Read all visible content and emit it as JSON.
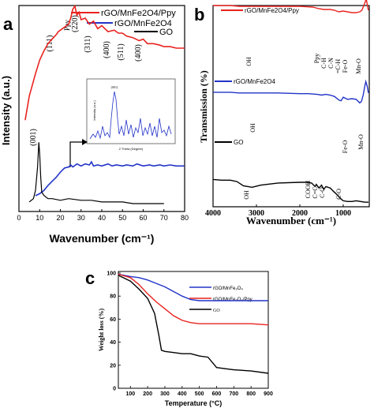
{
  "chart_data": [
    {
      "panel": "a",
      "type": "line",
      "xlabel": "Wavenumber (cm⁻¹)",
      "ylabel": "Intensity (a.u.)",
      "xlim": [
        0,
        80
      ],
      "xticks": [
        "0",
        "10",
        "20",
        "30",
        "40",
        "50",
        "60",
        "70",
        "80"
      ],
      "legend_position": "top-right",
      "series": [
        {
          "name": "rGO/MnFe2O4/Ppy",
          "color": "#e8231f",
          "x": [
            3,
            5,
            8,
            10,
            12,
            14,
            16,
            18,
            19,
            20,
            22,
            24,
            25,
            26,
            27,
            28,
            29,
            30,
            32,
            34,
            36,
            38,
            40,
            43,
            46,
            48,
            50,
            52,
            55,
            58,
            60,
            62,
            65,
            68,
            70,
            73,
            76,
            80
          ],
          "y": [
            0.12,
            0.28,
            0.43,
            0.52,
            0.58,
            0.63,
            0.66,
            0.69,
            0.71,
            0.72,
            0.74,
            0.76,
            0.8,
            0.86,
            0.88,
            0.82,
            0.84,
            0.79,
            0.8,
            0.76,
            0.78,
            0.73,
            0.75,
            0.71,
            0.72,
            0.7,
            0.7,
            0.68,
            0.67,
            0.65,
            0.66,
            0.63,
            0.63,
            0.62,
            0.61,
            0.61,
            0.6,
            0.6
          ]
        },
        {
          "name": "rGO/MnFe2O4",
          "color": "#2233c8",
          "x": [
            8,
            10,
            12,
            14,
            16,
            18,
            20,
            22,
            24,
            25,
            26,
            28,
            30,
            32,
            34,
            35,
            36,
            38,
            40,
            43,
            45,
            47,
            50,
            52,
            55,
            57,
            60,
            63,
            65,
            68,
            70,
            73,
            76,
            80
          ],
          "y": [
            0.0,
            0.02,
            0.05,
            0.1,
            0.14,
            0.18,
            0.23,
            0.27,
            0.28,
            0.3,
            0.28,
            0.31,
            0.29,
            0.31,
            0.3,
            0.33,
            0.29,
            0.3,
            0.29,
            0.31,
            0.29,
            0.3,
            0.29,
            0.3,
            0.29,
            0.31,
            0.29,
            0.3,
            0.29,
            0.3,
            0.29,
            0.3,
            0.29,
            0.29
          ]
        },
        {
          "name": "GO",
          "color": "#000000",
          "x": [
            5,
            7,
            8,
            9,
            9.6,
            10,
            10.5,
            11,
            12,
            14,
            16,
            20,
            24,
            30,
            35,
            40,
            45,
            50,
            55,
            60,
            65,
            70
          ],
          "y": [
            0.01,
            0.03,
            0.08,
            0.22,
            0.37,
            0.3,
            0.16,
            0.07,
            0.05,
            0.03,
            0.03,
            0.02,
            0.03,
            0.02,
            0.02,
            0.01,
            0.01,
            0.01,
            0.0,
            0.0,
            0.0,
            0.0
          ]
        }
      ],
      "peak_labels": [
        "(111)",
        "Ppy",
        "(220)",
        "(311)",
        "(400)",
        "(511)",
        "(400)",
        "(001)"
      ],
      "inset": {
        "xlabel": "2 Theta (Degree)",
        "ylabel": "Intensity (a.u.)",
        "peak_label": "(001)"
      }
    },
    {
      "panel": "b",
      "type": "line",
      "xlabel": "Wavenumber (cm⁻¹)",
      "ylabel": "Transmission (%)",
      "xlim": [
        4000,
        400
      ],
      "xticks": [
        "4000",
        "3000",
        "2000",
        "1000"
      ],
      "series": [
        {
          "name": "rGO/MnFe2O4/Ppy",
          "color": "#e8231f",
          "x": [
            4000,
            3600,
            3400,
            3000,
            2500,
            2000,
            1700,
            1560,
            1450,
            1300,
            1200,
            1100,
            1000,
            900,
            800,
            700,
            620,
            570,
            540,
            510,
            490,
            470,
            450,
            420
          ],
          "y": [
            0.88,
            0.88,
            0.87,
            0.87,
            0.87,
            0.87,
            0.86,
            0.84,
            0.83,
            0.83,
            0.82,
            0.8,
            0.81,
            0.8,
            0.79,
            0.79,
            0.8,
            0.82,
            0.86,
            0.9,
            0.93,
            0.97,
            0.9,
            0.82
          ]
        },
        {
          "name": "rGO/MnFe2O4",
          "color": "#2233c8",
          "x": [
            4000,
            3600,
            3400,
            3000,
            2500,
            2000,
            1800,
            1600,
            1500,
            1400,
            1300,
            1200,
            1100,
            1050,
            1000,
            900,
            800,
            700,
            620,
            580,
            540,
            510,
            480,
            450,
            420
          ],
          "y": [
            0.59,
            0.59,
            0.58,
            0.58,
            0.58,
            0.57,
            0.57,
            0.56,
            0.55,
            0.56,
            0.55,
            0.53,
            0.48,
            0.47,
            0.52,
            0.49,
            0.5,
            0.49,
            0.44,
            0.46,
            0.55,
            0.65,
            0.74,
            0.68,
            0.58
          ]
        },
        {
          "name": "GO",
          "color": "#000000",
          "x": [
            4000,
            3800,
            3600,
            3450,
            3300,
            3100,
            2900,
            2500,
            2000,
            1850,
            1730,
            1650,
            1620,
            1560,
            1500,
            1450,
            1400,
            1300,
            1220,
            1150,
            1060,
            1000,
            900,
            800,
            700,
            600,
            500,
            420
          ],
          "y": [
            0.34,
            0.33,
            0.33,
            0.31,
            0.25,
            0.23,
            0.26,
            0.29,
            0.3,
            0.3,
            0.29,
            0.24,
            0.27,
            0.22,
            0.26,
            0.2,
            0.24,
            0.22,
            0.17,
            0.13,
            0.07,
            0.04,
            0.03,
            0.03,
            0.04,
            0.03,
            0.02,
            0.02
          ]
        }
      ],
      "annotations": [
        "OH",
        "Ppy",
        "C-H",
        "C-N",
        "=C-H",
        "Fe-O",
        "Mn-O",
        "OH",
        "Fe-O",
        "Mn-O",
        "OH",
        "COOH",
        "C=C",
        "C-O",
        "C-O"
      ]
    },
    {
      "panel": "c",
      "type": "line",
      "xlabel": "Temperature (°C)",
      "ylabel": "Weight loss (%)",
      "xlim": [
        30,
        900
      ],
      "ylim": [
        0,
        100
      ],
      "xticks": [
        "100",
        "200",
        "300",
        "400",
        "500",
        "600",
        "700",
        "800",
        "900"
      ],
      "yticks": [
        "0",
        "20",
        "40",
        "60",
        "80",
        "100"
      ],
      "legend_position": "top-right",
      "series": [
        {
          "name": "rGO/MnFe₂O₄",
          "color": "#2233c8",
          "x": [
            30,
            100,
            150,
            200,
            250,
            300,
            350,
            400,
            450,
            500,
            600,
            700,
            800,
            900
          ],
          "y": [
            99,
            97,
            96,
            94,
            91,
            88,
            84,
            80,
            77,
            76,
            76,
            76,
            76,
            76
          ]
        },
        {
          "name": "rGO/MnFe₂O₄/Ppy",
          "color": "#e8231f",
          "x": [
            30,
            100,
            150,
            200,
            250,
            300,
            350,
            400,
            450,
            500,
            600,
            700,
            800,
            900
          ],
          "y": [
            99,
            96,
            90,
            82,
            75,
            69,
            63,
            59,
            57,
            56,
            56,
            56,
            56,
            55
          ]
        },
        {
          "name": "GO",
          "color": "#000000",
          "x": [
            30,
            100,
            150,
            200,
            240,
            265,
            280,
            300,
            350,
            400,
            450,
            500,
            550,
            600,
            650,
            700,
            800,
            900
          ],
          "y": [
            98,
            93,
            86,
            78,
            65,
            46,
            33,
            32,
            31,
            30,
            30,
            28,
            27,
            18,
            17,
            16,
            15,
            13
          ]
        }
      ]
    }
  ],
  "panels": {
    "a": {
      "label": "a"
    },
    "b": {
      "label": "b"
    },
    "c": {
      "label": "c"
    }
  },
  "colors": {
    "red": "#e8231f",
    "blue": "#2233c8",
    "black": "#000000"
  }
}
